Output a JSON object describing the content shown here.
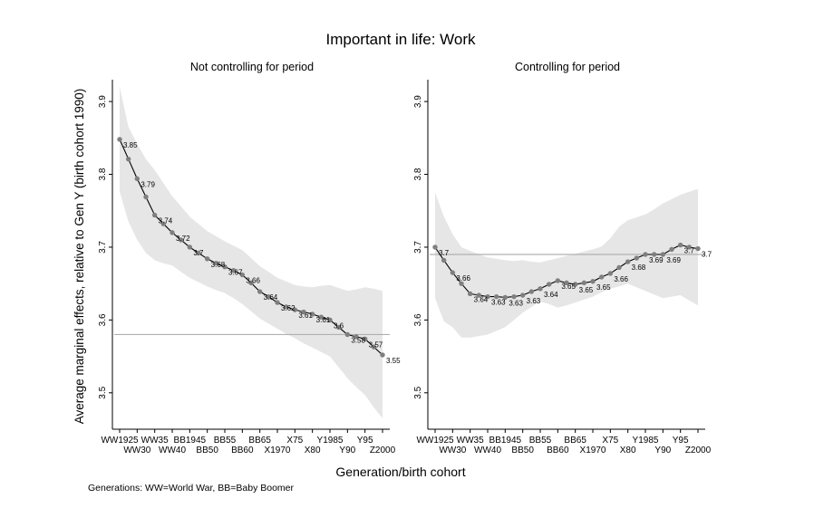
{
  "title": "Important in life: Work",
  "ylabel": "Average marginal effects, relative to Gen Y (birth cohort 1990)",
  "xlabel": "Generation/birth cohort",
  "note": "Generations: WW=World War, BB=Baby Boomer",
  "chart_data": [
    {
      "type": "line",
      "title": "Not controlling for period",
      "ylim": [
        3.45,
        3.93
      ],
      "yticks": [
        3.5,
        3.6,
        3.7,
        3.8,
        3.9
      ],
      "ytick_labels": [
        "3.5",
        "3.6",
        "3.7",
        "3.8",
        "3.9"
      ],
      "xtick_labels_upper": [
        "WW1925",
        "WW35",
        "BB1945",
        "BB55",
        "BB65",
        "X75",
        "Y1985",
        "Y95"
      ],
      "xtick_labels_lower": [
        "WW30",
        "WW40",
        "BB50",
        "BB60",
        "X1970",
        "X80",
        "Y90",
        "Z2000"
      ],
      "x": [
        1925,
        1927.5,
        1930,
        1932.5,
        1935,
        1937.5,
        1940,
        1942.5,
        1945,
        1947.5,
        1950,
        1952.5,
        1955,
        1957.5,
        1960,
        1962.5,
        1965,
        1967.5,
        1970,
        1972.5,
        1975,
        1977.5,
        1980,
        1982.5,
        1985,
        1987.5,
        1990,
        1992.5,
        1995,
        1997.5,
        2000
      ],
      "y": [
        3.848,
        3.821,
        3.794,
        3.769,
        3.744,
        3.732,
        3.72,
        3.71,
        3.7,
        3.692,
        3.684,
        3.678,
        3.673,
        3.668,
        3.662,
        3.651,
        3.639,
        3.632,
        3.624,
        3.618,
        3.614,
        3.611,
        3.608,
        3.604,
        3.6,
        3.59,
        3.58,
        3.577,
        3.574,
        3.563,
        3.552
      ],
      "ci_low": [
        3.776,
        3.735,
        3.71,
        3.692,
        3.682,
        3.678,
        3.675,
        3.666,
        3.658,
        3.652,
        3.646,
        3.641,
        3.637,
        3.63,
        3.622,
        3.612,
        3.602,
        3.595,
        3.588,
        3.581,
        3.575,
        3.568,
        3.562,
        3.556,
        3.55,
        3.535,
        3.52,
        3.508,
        3.497,
        3.48,
        3.465
      ],
      "ci_high": [
        3.92,
        3.865,
        3.842,
        3.821,
        3.806,
        3.788,
        3.77,
        3.756,
        3.742,
        3.732,
        3.722,
        3.715,
        3.708,
        3.702,
        3.696,
        3.685,
        3.674,
        3.666,
        3.658,
        3.653,
        3.648,
        3.646,
        3.645,
        3.647,
        3.648,
        3.644,
        3.64,
        3.642,
        3.645,
        3.643,
        3.64
      ],
      "refline": 3.58,
      "data_labels": [
        {
          "x": 1925,
          "y": 3.848,
          "text": "3.85"
        },
        {
          "x": 1930,
          "y": 3.794,
          "text": "3.79"
        },
        {
          "x": 1935,
          "y": 3.744,
          "text": "3.74"
        },
        {
          "x": 1940,
          "y": 3.72,
          "text": "3.72"
        },
        {
          "x": 1945,
          "y": 3.7,
          "text": "3.7"
        },
        {
          "x": 1950,
          "y": 3.684,
          "text": "3.68"
        },
        {
          "x": 1955,
          "y": 3.673,
          "text": "3.67"
        },
        {
          "x": 1960,
          "y": 3.662,
          "text": "3.66"
        },
        {
          "x": 1965,
          "y": 3.639,
          "text": "3.64"
        },
        {
          "x": 1970,
          "y": 3.624,
          "text": "3.62"
        },
        {
          "x": 1975,
          "y": 3.614,
          "text": "3.61"
        },
        {
          "x": 1980,
          "y": 3.608,
          "text": "3.61"
        },
        {
          "x": 1985,
          "y": 3.6,
          "text": "3.6"
        },
        {
          "x": 1990,
          "y": 3.58,
          "text": "3.58"
        },
        {
          "x": 1995,
          "y": 3.574,
          "text": "3.57"
        },
        {
          "x": 2000,
          "y": 3.552,
          "text": "3.55"
        }
      ]
    },
    {
      "type": "line",
      "title": "Controlling for period",
      "ylim": [
        3.45,
        3.93
      ],
      "yticks": [
        3.5,
        3.6,
        3.7,
        3.8,
        3.9
      ],
      "ytick_labels": [
        "3.5",
        "3.6",
        "3.7",
        "3.8",
        "3.9"
      ],
      "xtick_labels_upper": [
        "WW1925",
        "WW35",
        "BB1945",
        "BB55",
        "BB65",
        "X75",
        "Y1985",
        "Y95"
      ],
      "xtick_labels_lower": [
        "WW30",
        "WW40",
        "BB50",
        "BB60",
        "X1970",
        "X80",
        "Y90",
        "Z2000"
      ],
      "x": [
        1925,
        1927.5,
        1930,
        1932.5,
        1935,
        1937.5,
        1940,
        1942.5,
        1945,
        1947.5,
        1950,
        1952.5,
        1955,
        1957.5,
        1960,
        1962.5,
        1965,
        1967.5,
        1970,
        1972.5,
        1975,
        1977.5,
        1980,
        1982.5,
        1985,
        1987.5,
        1990,
        1992.5,
        1995,
        1997.5,
        2000
      ],
      "y": [
        3.7,
        3.682,
        3.665,
        3.65,
        3.636,
        3.634,
        3.632,
        3.632,
        3.631,
        3.632,
        3.634,
        3.639,
        3.643,
        3.649,
        3.654,
        3.651,
        3.649,
        3.651,
        3.653,
        3.659,
        3.664,
        3.672,
        3.68,
        3.685,
        3.69,
        3.69,
        3.69,
        3.697,
        3.703,
        3.7,
        3.698
      ],
      "ci_low": [
        3.63,
        3.598,
        3.59,
        3.576,
        3.576,
        3.578,
        3.58,
        3.585,
        3.59,
        3.6,
        3.61,
        3.618,
        3.625,
        3.622,
        3.617,
        3.62,
        3.624,
        3.628,
        3.632,
        3.638,
        3.643,
        3.646,
        3.65,
        3.645,
        3.64,
        3.635,
        3.63,
        3.632,
        3.634,
        3.627,
        3.62
      ],
      "ci_high": [
        3.775,
        3.742,
        3.718,
        3.7,
        3.695,
        3.69,
        3.686,
        3.684,
        3.682,
        3.681,
        3.682,
        3.68,
        3.679,
        3.682,
        3.685,
        3.688,
        3.691,
        3.694,
        3.697,
        3.701,
        3.712,
        3.728,
        3.737,
        3.741,
        3.745,
        3.752,
        3.76,
        3.766,
        3.772,
        3.776,
        3.78
      ],
      "refline": 3.69,
      "data_labels": [
        {
          "x": 1925,
          "y": 3.7,
          "text": "3.7"
        },
        {
          "x": 1930,
          "y": 3.665,
          "text": "3.66"
        },
        {
          "x": 1935,
          "y": 3.636,
          "text": "3.64"
        },
        {
          "x": 1940,
          "y": 3.632,
          "text": "3.63"
        },
        {
          "x": 1945,
          "y": 3.631,
          "text": "3.63"
        },
        {
          "x": 1950,
          "y": 3.634,
          "text": "3.63"
        },
        {
          "x": 1955,
          "y": 3.643,
          "text": "3.64"
        },
        {
          "x": 1960,
          "y": 3.654,
          "text": "3.65"
        },
        {
          "x": 1965,
          "y": 3.649,
          "text": "3.65"
        },
        {
          "x": 1970,
          "y": 3.653,
          "text": "3.65"
        },
        {
          "x": 1975,
          "y": 3.664,
          "text": "3.66"
        },
        {
          "x": 1980,
          "y": 3.68,
          "text": "3.68"
        },
        {
          "x": 1985,
          "y": 3.69,
          "text": "3.69"
        },
        {
          "x": 1990,
          "y": 3.69,
          "text": "3.69"
        },
        {
          "x": 1995,
          "y": 3.703,
          "text": "3.7"
        },
        {
          "x": 2000,
          "y": 3.698,
          "text": "3.7"
        }
      ]
    }
  ],
  "colors": {
    "band": "#e6e6e6",
    "line": "#000000",
    "marker": "#7f7f7f",
    "refline": "#b0b0b0",
    "axis": "#000000"
  }
}
